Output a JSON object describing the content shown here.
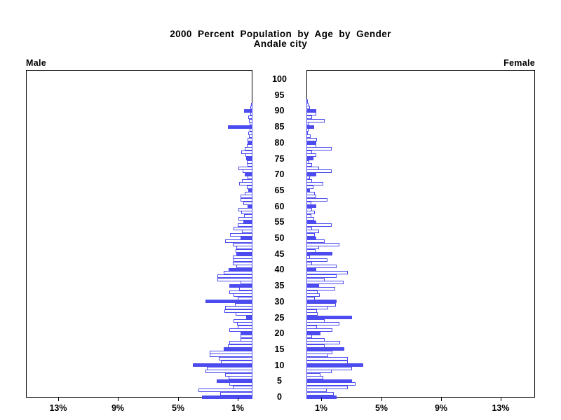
{
  "chart_data": {
    "type": "bar",
    "variant": "population-pyramid",
    "title": "2000 Percent Population by Age by Gender",
    "subtitle": "Andale city",
    "left_label": "Male",
    "right_label": "Female",
    "bar_color": "#4b4bef",
    "bar_fill_unhighlighted": "#ffffff",
    "highlight_rule": "ages divisible by 5 are solid filled",
    "axis": {
      "age_tick_values": [
        0,
        5,
        10,
        15,
        20,
        25,
        30,
        35,
        40,
        45,
        50,
        55,
        60,
        65,
        70,
        75,
        80,
        85,
        90,
        95,
        100
      ],
      "x_tick_values": [
        1,
        5,
        9,
        13
      ],
      "x_tick_labels": [
        "1%",
        "5%",
        "9%",
        "13%"
      ],
      "x_max_percent": 15.2,
      "age_min": 0,
      "age_max": 100,
      "grid": "off",
      "male_axis_direction": "right-to-left",
      "female_axis_direction": "left-to-right"
    },
    "ages": [
      0,
      1,
      2,
      3,
      4,
      5,
      6,
      7,
      8,
      9,
      10,
      11,
      12,
      13,
      14,
      15,
      16,
      17,
      18,
      19,
      20,
      21,
      22,
      23,
      24,
      25,
      26,
      27,
      28,
      29,
      30,
      31,
      32,
      33,
      34,
      35,
      36,
      37,
      38,
      39,
      40,
      41,
      42,
      43,
      44,
      45,
      46,
      47,
      48,
      49,
      50,
      51,
      52,
      53,
      54,
      55,
      56,
      57,
      58,
      59,
      60,
      61,
      62,
      63,
      64,
      65,
      66,
      67,
      68,
      69,
      70,
      71,
      72,
      73,
      74,
      75,
      76,
      77,
      78,
      79,
      80,
      81,
      82,
      83,
      84,
      85,
      86,
      87,
      88,
      89,
      90,
      91,
      92,
      93,
      94,
      95
    ],
    "series": [
      {
        "name": "Male",
        "unit": "percent",
        "values": [
          3.38,
          2.16,
          3.63,
          1.31,
          1.53,
          2.41,
          1.59,
          1.81,
          3.16,
          3.03,
          3.97,
          2.09,
          2.25,
          2.88,
          2.88,
          1.91,
          1.63,
          1.53,
          0.78,
          0.78,
          0.81,
          1.53,
          1.0,
          1.03,
          1.28,
          0.41,
          1.13,
          1.86,
          1.83,
          1.19,
          3.16,
          1.0,
          1.28,
          1.56,
          0.89,
          1.56,
          0.81,
          2.37,
          2.34,
          1.91,
          1.59,
          1.06,
          1.33,
          1.28,
          1.33,
          1.09,
          1.14,
          1.09,
          1.33,
          1.84,
          0.78,
          1.5,
          0.7,
          1.28,
          0.97,
          0.59,
          0.94,
          0.55,
          0.75,
          0.94,
          0.34,
          0.63,
          0.78,
          0.78,
          0.5,
          0.27,
          0.39,
          0.91,
          0.7,
          0.31,
          0.5,
          0.66,
          0.94,
          0.31,
          0.36,
          0.41,
          0.47,
          0.75,
          0.52,
          0.36,
          0.31,
          0.33,
          0.22,
          0.3,
          0.19,
          1.64,
          0.2,
          0.25,
          0.27,
          0.16,
          0.58,
          0.16,
          0.09,
          0,
          0,
          0
        ]
      },
      {
        "name": "Female",
        "unit": "percent",
        "values": [
          2.0,
          1.81,
          1.34,
          2.75,
          3.28,
          3.03,
          1.15,
          0.95,
          1.69,
          3.03,
          3.81,
          2.77,
          2.77,
          1.47,
          1.75,
          2.53,
          1.22,
          2.25,
          1.22,
          0.38,
          0.94,
          1.75,
          0.72,
          2.22,
          1.22,
          3.03,
          0.77,
          0.72,
          1.47,
          1.97,
          2.03,
          0.56,
          0.88,
          0.77,
          1.94,
          0.84,
          2.5,
          1.22,
          2.03,
          2.77,
          0.66,
          2.03,
          0.38,
          1.42,
          0.22,
          1.75,
          0.6,
          0.84,
          2.22,
          1.22,
          0.66,
          0.56,
          0.84,
          0.38,
          1.7,
          0.66,
          0.5,
          0.31,
          0.56,
          0.38,
          0.66,
          0.31,
          1.42,
          0.66,
          0.56,
          0.22,
          0.47,
          1.13,
          0.38,
          0.22,
          0.66,
          1.7,
          0.84,
          0.38,
          0.2,
          0.45,
          0.66,
          0.38,
          1.7,
          0.66,
          0.66,
          0.7,
          0.3,
          0.1,
          0.15,
          0.5,
          0.2,
          1.22,
          0.38,
          0.66,
          0.66,
          0.25,
          0.12,
          0.06,
          0,
          0
        ]
      }
    ]
  }
}
